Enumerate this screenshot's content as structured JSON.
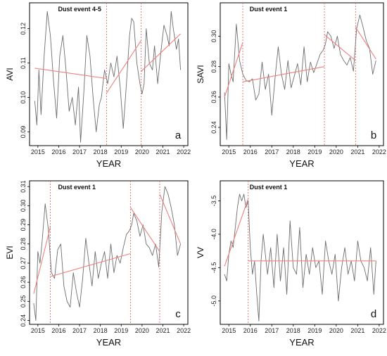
{
  "colors": {
    "series": "#6e6e6e",
    "trend": "#f08080",
    "breakpoint": "#e15b5b",
    "frame": "#000000"
  },
  "chart_data": [
    {
      "type": "line",
      "panel_label": "a",
      "event_label": "Dust event 4-5",
      "xlabel": "YEAR",
      "ylabel": "AVI",
      "xlim": [
        2014.6,
        2022.2
      ],
      "ylim": [
        0.086,
        0.1275
      ],
      "xticks": [
        "2015",
        "2016",
        "2017",
        "2018",
        "2019",
        "2020",
        "2021",
        "2022"
      ],
      "yticks": [
        "0.09",
        "0.10",
        "0.11",
        "0.12"
      ],
      "ytick_values": [
        0.09,
        0.1,
        0.11,
        0.12
      ],
      "breakpoints": [
        2018.3,
        2019.95
      ],
      "series": [
        {
          "x": [
            2014.85,
            2014.95,
            2015.05,
            2015.15,
            2015.3,
            2015.45,
            2015.6,
            2015.75,
            2015.9,
            2016.05,
            2016.2,
            2016.35,
            2016.5,
            2016.65,
            2016.8,
            2016.95,
            2017.05,
            2017.2,
            2017.35,
            2017.5,
            2017.65,
            2017.8,
            2017.95,
            2018.05,
            2018.2,
            2018.35,
            2018.5,
            2018.65,
            2018.8,
            2018.95,
            2019.1,
            2019.25,
            2019.4,
            2019.5,
            2019.6,
            2019.75,
            2019.9,
            2020.0,
            2020.1,
            2020.2,
            2020.35,
            2020.5,
            2020.6,
            2020.75,
            2020.9,
            2021.05,
            2021.2,
            2021.3,
            2021.4,
            2021.5,
            2021.65,
            2021.75,
            2021.85
          ],
          "y": [
            0.099,
            0.092,
            0.108,
            0.095,
            0.112,
            0.125,
            0.118,
            0.105,
            0.094,
            0.112,
            0.118,
            0.108,
            0.096,
            0.1,
            0.092,
            0.103,
            0.087,
            0.101,
            0.118,
            0.112,
            0.1,
            0.09,
            0.098,
            0.1,
            0.108,
            0.104,
            0.11,
            0.106,
            0.112,
            0.103,
            0.091,
            0.104,
            0.118,
            0.123,
            0.122,
            0.11,
            0.104,
            0.101,
            0.104,
            0.12,
            0.11,
            0.108,
            0.115,
            0.104,
            0.113,
            0.121,
            0.118,
            0.115,
            0.125,
            0.12,
            0.114,
            0.117,
            0.108
          ]
        }
      ],
      "trend_segments": [
        {
          "x": [
            2014.85,
            2018.3
          ],
          "y": [
            0.1085,
            0.1055
          ]
        },
        {
          "x": [
            2018.3,
            2019.95
          ],
          "y": [
            0.1013,
            0.1165
          ]
        },
        {
          "x": [
            2019.95,
            2021.85
          ],
          "y": [
            0.1075,
            0.1185
          ]
        }
      ]
    },
    {
      "type": "line",
      "panel_label": "b",
      "event_label": "Dust event 1",
      "xlabel": "YEAR",
      "ylabel": "SAVI",
      "xlim": [
        2014.6,
        2022.2
      ],
      "ylim": [
        0.228,
        0.322
      ],
      "xticks": [
        "2015",
        "2016",
        "2017",
        "2018",
        "2019",
        "2020",
        "2021",
        "2022"
      ],
      "yticks": [
        "0.24",
        "0.26",
        "0.28",
        "0.30"
      ],
      "ytick_values": [
        0.24,
        0.26,
        0.28,
        0.3
      ],
      "breakpoints": [
        2015.65,
        2019.45,
        2020.9
      ],
      "series": [
        {
          "x": [
            2014.8,
            2014.9,
            2015.0,
            2015.1,
            2015.2,
            2015.35,
            2015.5,
            2015.65,
            2015.8,
            2015.95,
            2016.1,
            2016.25,
            2016.4,
            2016.55,
            2016.7,
            2016.85,
            2017.0,
            2017.15,
            2017.3,
            2017.45,
            2017.6,
            2017.75,
            2017.9,
            2018.05,
            2018.2,
            2018.35,
            2018.5,
            2018.65,
            2018.8,
            2018.95,
            2019.1,
            2019.25,
            2019.4,
            2019.5,
            2019.6,
            2019.75,
            2019.9,
            2020.05,
            2020.2,
            2020.35,
            2020.5,
            2020.65,
            2020.8,
            2020.95,
            2021.1,
            2021.25,
            2021.4,
            2021.55,
            2021.7,
            2021.85
          ],
          "y": [
            0.263,
            0.232,
            0.282,
            0.275,
            0.27,
            0.308,
            0.284,
            0.275,
            0.271,
            0.27,
            0.272,
            0.258,
            0.262,
            0.283,
            0.265,
            0.275,
            0.248,
            0.272,
            0.293,
            0.275,
            0.265,
            0.284,
            0.266,
            0.274,
            0.282,
            0.268,
            0.293,
            0.27,
            0.283,
            0.276,
            0.282,
            0.288,
            0.291,
            0.295,
            0.303,
            0.3,
            0.292,
            0.3,
            0.288,
            0.284,
            0.281,
            0.286,
            0.277,
            0.305,
            0.314,
            0.306,
            0.297,
            0.292,
            0.275,
            0.284
          ]
        }
      ],
      "trend_segments": [
        {
          "x": [
            2014.8,
            2015.65
          ],
          "y": [
            0.26,
            0.296
          ]
        },
        {
          "x": [
            2015.65,
            2019.45
          ],
          "y": [
            0.27,
            0.28
          ]
        },
        {
          "x": [
            2019.45,
            2020.9
          ],
          "y": [
            0.301,
            0.284
          ]
        },
        {
          "x": [
            2020.9,
            2021.85
          ],
          "y": [
            0.306,
            0.285
          ]
        }
      ]
    },
    {
      "type": "line",
      "panel_label": "c",
      "event_label": "Dust event 1",
      "xlabel": "YEAR",
      "ylabel": "EVI",
      "xlim": [
        2014.6,
        2022.2
      ],
      "ylim": [
        0.238,
        0.313
      ],
      "xticks": [
        "2015",
        "2016",
        "2017",
        "2018",
        "2019",
        "2020",
        "2021",
        "2022"
      ],
      "yticks": [
        "0.24",
        "0.25",
        "0.26",
        "0.27",
        "0.28",
        "0.29",
        "0.30",
        "0.31"
      ],
      "ytick_values": [
        0.24,
        0.25,
        0.26,
        0.27,
        0.28,
        0.29,
        0.3,
        0.31
      ],
      "breakpoints": [
        2015.6,
        2019.45,
        2020.85
      ],
      "series": [
        {
          "x": [
            2014.8,
            2014.9,
            2015.0,
            2015.1,
            2015.2,
            2015.35,
            2015.5,
            2015.65,
            2015.8,
            2015.95,
            2016.1,
            2016.25,
            2016.4,
            2016.55,
            2016.7,
            2016.85,
            2017.0,
            2017.15,
            2017.3,
            2017.45,
            2017.6,
            2017.75,
            2017.9,
            2018.05,
            2018.2,
            2018.35,
            2018.5,
            2018.65,
            2018.8,
            2018.95,
            2019.1,
            2019.25,
            2019.4,
            2019.5,
            2019.6,
            2019.75,
            2019.9,
            2020.05,
            2020.2,
            2020.35,
            2020.5,
            2020.65,
            2020.8,
            2020.95,
            2021.1,
            2021.25,
            2021.4,
            2021.55,
            2021.7,
            2021.85
          ],
          "y": [
            0.249,
            0.24,
            0.276,
            0.27,
            0.281,
            0.301,
            0.288,
            0.265,
            0.262,
            0.277,
            0.28,
            0.258,
            0.25,
            0.247,
            0.265,
            0.255,
            0.247,
            0.262,
            0.283,
            0.27,
            0.258,
            0.276,
            0.262,
            0.27,
            0.276,
            0.262,
            0.28,
            0.265,
            0.274,
            0.27,
            0.278,
            0.285,
            0.287,
            0.29,
            0.296,
            0.292,
            0.284,
            0.29,
            0.28,
            0.278,
            0.274,
            0.28,
            0.268,
            0.297,
            0.31,
            0.306,
            0.299,
            0.29,
            0.274,
            0.28
          ]
        }
      ],
      "trend_segments": [
        {
          "x": [
            2014.8,
            2015.6
          ],
          "y": [
            0.254,
            0.289
          ]
        },
        {
          "x": [
            2015.6,
            2019.45
          ],
          "y": [
            0.263,
            0.275
          ]
        },
        {
          "x": [
            2019.45,
            2020.85
          ],
          "y": [
            0.299,
            0.276
          ]
        },
        {
          "x": [
            2020.85,
            2021.85
          ],
          "y": [
            0.306,
            0.28
          ]
        }
      ]
    },
    {
      "type": "line",
      "panel_label": "d",
      "event_label": "Dust event 1",
      "xlabel": "YEAR",
      "ylabel": "VV",
      "xlim": [
        2014.6,
        2022.2
      ],
      "ylim": [
        -5.35,
        -3.2
      ],
      "xticks": [
        "2015",
        "2016",
        "2017",
        "2018",
        "2019",
        "2020",
        "2021",
        "2022"
      ],
      "yticks": [
        "-5.0",
        "-4.5",
        "-4.0",
        "-3.5"
      ],
      "ytick_values": [
        -5.0,
        -4.5,
        -4.0,
        -3.5
      ],
      "breakpoints": [
        2015.9
      ],
      "series": [
        {
          "x": [
            2014.8,
            2014.9,
            2015.0,
            2015.1,
            2015.2,
            2015.3,
            2015.4,
            2015.5,
            2015.6,
            2015.7,
            2015.8,
            2015.9,
            2016.0,
            2016.1,
            2016.2,
            2016.3,
            2016.4,
            2016.5,
            2016.6,
            2016.7,
            2016.8,
            2016.95,
            2017.1,
            2017.25,
            2017.4,
            2017.55,
            2017.7,
            2017.85,
            2018.0,
            2018.15,
            2018.3,
            2018.45,
            2018.6,
            2018.75,
            2018.9,
            2019.05,
            2019.2,
            2019.35,
            2019.5,
            2019.65,
            2019.8,
            2019.95,
            2020.1,
            2020.25,
            2020.4,
            2020.55,
            2020.7,
            2020.85,
            2021.0,
            2021.15,
            2021.3,
            2021.45,
            2021.6,
            2021.75,
            2021.85
          ],
          "y": [
            -4.6,
            -4.7,
            -4.3,
            -4.1,
            -4.2,
            -3.9,
            -3.6,
            -3.4,
            -3.5,
            -3.4,
            -3.6,
            -3.5,
            -4.2,
            -4.6,
            -4.4,
            -4.9,
            -5.3,
            -4.4,
            -4.0,
            -4.3,
            -4.6,
            -4.2,
            -4.8,
            -4.0,
            -4.7,
            -4.2,
            -4.9,
            -3.8,
            -4.5,
            -4.6,
            -3.9,
            -4.8,
            -4.3,
            -4.6,
            -4.2,
            -4.5,
            -4.4,
            -4.9,
            -4.1,
            -4.4,
            -4.6,
            -4.3,
            -5.0,
            -4.5,
            -4.2,
            -4.6,
            -4.4,
            -4.7,
            -4.1,
            -4.4,
            -4.5,
            -4.7,
            -4.2,
            -4.9,
            -4.4
          ]
        }
      ],
      "trend_segments": [
        {
          "x": [
            2014.8,
            2015.9
          ],
          "y": [
            -4.48,
            -3.47
          ]
        },
        {
          "x": [
            2015.9,
            2021.85
          ],
          "y": [
            -4.4,
            -4.4
          ]
        }
      ]
    }
  ]
}
